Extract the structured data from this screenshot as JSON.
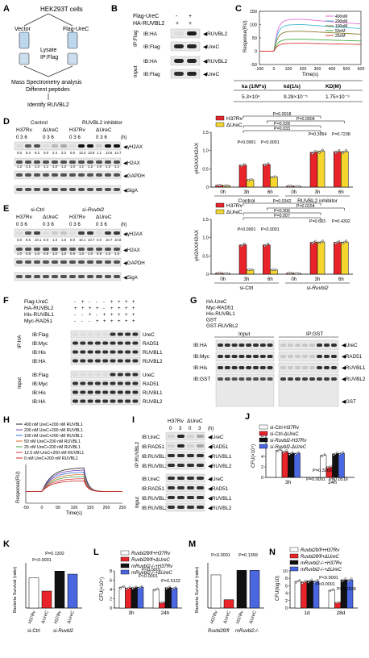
{
  "panels": {
    "A": {
      "letter": "A",
      "cell_line": "HEK293T cells",
      "vector": "Vector",
      "flag_urec": "Flag-UreC",
      "lysate": "Lysate",
      "ip": "IP:Flag",
      "ms": "Mass Spectrometry analysis",
      "diff": "Different peptides",
      "identify": "Identify RUVBL2"
    },
    "B": {
      "letter": "B",
      "rows": [
        "Flag-UreC",
        "HA-RUVBL2"
      ],
      "signs": [
        [
          "-",
          "+"
        ],
        [
          "+",
          "+"
        ]
      ],
      "ip_label": "IP:Flag",
      "input_label": "Input",
      "blots": [
        "IB:HA",
        "IB:Flag",
        "IB:HA",
        "IB:Flag"
      ],
      "bands": [
        "RUVBL2",
        "UreC",
        "RUVBL2",
        "UreC"
      ]
    },
    "C": {
      "letter": "C",
      "legend": [
        "400nM",
        "200nM",
        "100nM",
        "50nM",
        "25nM"
      ],
      "ylabel": "Response(RU)",
      "xlabel": "Time(s)",
      "yticks": [
        "-50",
        "0",
        "50",
        "100",
        "150"
      ],
      "xticks": [
        "-100",
        "0",
        "100",
        "200",
        "300",
        "400",
        "500",
        "600"
      ],
      "table_headers": [
        "ka (1/M*s)",
        "kd(1/s)",
        "KD(M)"
      ],
      "table_values": [
        "5.3×10⁴",
        "9.28×10⁻⁵",
        "1.75×10⁻⁹"
      ]
    },
    "D": {
      "letter": "D",
      "group1": "Control",
      "group2": "RUVBL2 inhibitor",
      "strains": [
        "H37Rv",
        "ΔUreC",
        "H37Rv",
        "ΔUreC"
      ],
      "times": "0 3 6",
      "h": "(h)",
      "blots": [
        "γH2AX",
        "H2AX",
        "GAPDH",
        "SigA"
      ],
      "quant1": [
        "0.0",
        "8.4",
        "9.2",
        "0.0",
        "2.4",
        "3.3",
        "0.0",
        "13.3",
        "13.8",
        "1.1",
        "13.6",
        "14.7"
      ],
      "quant2": [
        "1.2",
        "1.1",
        "1.2",
        "1.1",
        "1.0",
        "1.2",
        "1.0",
        "1.1",
        "1.2",
        "1.0",
        "1.2",
        "1.1"
      ],
      "legend": [
        "H37Rv",
        "ΔUreC"
      ],
      "ylabel": "γH2AX/H2AX",
      "yticks": [
        "0",
        "0.5",
        "1.0",
        "1.5"
      ],
      "xticks": [
        "0h",
        "3h",
        "6h",
        "0h",
        "3h",
        "6h"
      ],
      "groups": [
        "Control",
        "RUVBL2 inhibitor"
      ],
      "pvals": [
        "P=0.0018",
        "P=0.0004",
        "P=0.028",
        "P=0.033",
        "P<0.0001",
        "P<0.0001",
        "P=0.3954",
        "P=0.7238"
      ]
    },
    "E": {
      "letter": "E",
      "group1": "si-Ctrl",
      "group2": "si-Ruvbl2",
      "strains": [
        "H37Rv",
        "ΔUreC",
        "H37Rv",
        "ΔUreC"
      ],
      "times": "0 3 6",
      "h": "(h)",
      "blots": [
        "γH2AX",
        "H2AX",
        "GAPDH",
        "SigA"
      ],
      "quant1": [
        "0.0",
        "8.6",
        "10.1",
        "0.0",
        "1.0",
        "1.6",
        "0.0",
        "10.1",
        "10.7",
        "0.0",
        "10.7",
        "10.8"
      ],
      "quant2": [
        "1.0",
        "0.9",
        "1.0",
        "0.9",
        "1.0",
        "1.0",
        "0.9",
        "1.0",
        "1.0",
        "0.9",
        "1.0",
        "1.0"
      ],
      "legend": [
        "H37Rv",
        "ΔUreC"
      ],
      "ylabel": "γH2AX/H2AX",
      "yticks": [
        "0",
        "0.5",
        "1.0",
        "1.5"
      ],
      "xticks": [
        "0h",
        "3h",
        "6h",
        "0h",
        "3h",
        "6h"
      ],
      "groups": [
        "si-Ctrl",
        "si-Ruvbl2"
      ],
      "pvals": [
        "P=0.0342",
        "P=0.0154",
        "P=0.006",
        "P=0.007",
        "P<0.0001",
        "P<0.0001",
        "P=0.683",
        "P=0.4302"
      ]
    },
    "F": {
      "letter": "F",
      "rows": [
        "Flag-UreC",
        "HA-RUVBL2",
        "His-RUVBL1",
        "Myc-RAD51"
      ],
      "ip_label": "IP:HA",
      "input_label": "Input",
      "blots": [
        "IB:Flag",
        "IB:Myc",
        "IB:His",
        "IB:HA",
        "IB:Flag",
        "IB:Myc",
        "IB:His",
        "IB:HA"
      ],
      "bands": [
        "UreC",
        "RAD51",
        "RUVBL1",
        "RUVBL2",
        "UreC",
        "RAD51",
        "RUVBL1",
        "RUVBL2"
      ]
    },
    "G": {
      "letter": "G",
      "rows": [
        "HA-UreC",
        "Myc-RAD51",
        "His-RUVBL1",
        "GST",
        "GST-RUVBL2"
      ],
      "input_label": "Input",
      "ip_label": "IP:GST",
      "blots": [
        "IB:HA",
        "IB:Myc",
        "IB:His",
        "IB:GST"
      ],
      "bands": [
        "UreC",
        "RAD51",
        "RUVBL1",
        "RUVBL2",
        "GST"
      ]
    },
    "H": {
      "letter": "H",
      "legend": [
        "400 nM UreC+200 nM RUVBL1",
        "200 nM UreC+200 nM RUVBL1",
        "100 nM UreC+200 nM RUVBL1",
        "50 nM UreC+200 nM RUVBL1",
        "25 nM UreC+200 nM RUVBL1",
        "12.5 nM UreC+200 nM RUVBL1",
        "0 nM UreC+200 nM RUVBL1"
      ],
      "ylabel": "Response(RU)",
      "xlabel": "Time(s)",
      "xticks": [
        "-50",
        "0",
        "50",
        "100",
        "150",
        "200",
        "250"
      ]
    },
    "I": {
      "letter": "I",
      "strains": [
        "H37Rv",
        "ΔUreC"
      ],
      "times": [
        "0",
        "3",
        "0",
        "3"
      ],
      "h": "(h)",
      "ip_label": "IP:RUVBL2",
      "input_label": "Input",
      "blots": [
        "IB:UreC",
        "IB:RAD51",
        "IB:RUVBL1",
        "IB:RUVBL2",
        "IB:UreC",
        "IB:RAD51",
        "IB:RUVBL1",
        "IB:RUVBL2"
      ],
      "bands": [
        "UreC",
        "RAD51",
        "RUVBL1",
        "RUVBL2",
        "UreC",
        "RAD51",
        "RUVBL1",
        "RUVBL2"
      ]
    },
    "J": {
      "letter": "J",
      "legend": [
        "si-Ctrl-H37Rv",
        "si-Ctrl-ΔUreC",
        "si-Ruvbl2-H37Rv",
        "si-Ruvbl2-ΔUreC"
      ],
      "ylabel": "CFU(×10⁴)",
      "xticks": [
        "3h",
        "24h"
      ],
      "pvals": [
        "P=0.3268",
        "P=0.0001",
        "P=0.0516"
      ]
    },
    "K": {
      "letter": "K",
      "ylabel": "Bacteria Survival (ratio)",
      "pvals": [
        "P=0.1302",
        "P<0.0001"
      ],
      "xticks": [
        "H37Rv",
        "ΔUreC",
        "H37Rv",
        "ΔUreC"
      ],
      "groups": [
        "si-Ctrl",
        "si-Ruvbl2"
      ]
    },
    "L": {
      "letter": "L",
      "legend": [
        "Ruvbl2fl/fl+H37Rv",
        "Ruvbl2fl/fl+ΔUreC",
        "mRuvbl2-/-+H37Rv",
        "mRuvbl2-/-+ΔUreC"
      ],
      "ylabel": "CFU(×10⁴)",
      "xticks": [
        "3h",
        "24h"
      ],
      "pvals": [
        "P<0.0001",
        "P<0.0001",
        "P=0.5122"
      ]
    },
    "M": {
      "letter": "M",
      "ylabel": "Bacteria Survival (ratio)",
      "pvals": [
        "P<0.0001",
        "P=0.1359"
      ],
      "xticks": [
        "H37Rv",
        "ΔUreC",
        "H37Rv",
        "ΔUreC"
      ],
      "groups": [
        "Ruvbl2fl/fl",
        "mRuvbl2-/-"
      ]
    },
    "N": {
      "letter": "N",
      "legend": [
        "Ruvbl2fl/fl+H37Rv",
        "Ruvbl2fl/fl+ΔUreC",
        "mRuvbl2-/-+H37Rv",
        "mRuvbl2-/-+ΔUreC"
      ],
      "ylabel": "CFU(log10)",
      "yticks": [
        "0",
        "2",
        "4",
        "6",
        "8",
        "10"
      ],
      "xticks": [
        "1d",
        "28d"
      ],
      "pvals": [
        "P<0.0001",
        "P<0.0001",
        "P=0.2838"
      ]
    }
  },
  "chart_data": [
    {
      "id": "D",
      "type": "bar",
      "categories": [
        "0h",
        "3h",
        "6h",
        "0h",
        "3h",
        "6h"
      ],
      "series": [
        {
          "name": "H37Rv",
          "values": [
            0.05,
            0.6,
            0.62,
            0.03,
            0.95,
            0.97
          ]
        },
        {
          "name": "ΔUreC",
          "values": [
            0.04,
            0.2,
            0.28,
            0.02,
            0.98,
            0.97
          ]
        }
      ],
      "ylim": [
        0,
        1.5
      ],
      "ylabel": "γH2AX/H2AX"
    },
    {
      "id": "E",
      "type": "bar",
      "categories": [
        "0h",
        "3h",
        "6h",
        "0h",
        "3h",
        "6h"
      ],
      "series": [
        {
          "name": "H37Rv",
          "values": [
            0.03,
            0.8,
            0.8,
            0.03,
            0.87,
            0.87
          ]
        },
        {
          "name": "ΔUreC",
          "values": [
            0.02,
            0.12,
            0.12,
            0.02,
            0.88,
            0.88
          ]
        }
      ],
      "ylim": [
        0,
        1.5
      ],
      "ylabel": "γH2AX/H2AX"
    },
    {
      "id": "J",
      "type": "bar",
      "categories": [
        "3h",
        "24h"
      ],
      "series": [
        {
          "name": "si-Ctrl-H37Rv",
          "values": [
            5.2,
            4.2
          ]
        },
        {
          "name": "si-Ctrl-ΔUreC",
          "values": [
            4.9,
            2.0
          ]
        },
        {
          "name": "si-Ruvbl2-H37Rv",
          "values": [
            4.6,
            4.5
          ]
        },
        {
          "name": "si-Ruvbl2-ΔUreC",
          "values": [
            4.6,
            4.6
          ]
        }
      ],
      "ylim": [
        0,
        8
      ]
    },
    {
      "id": "K",
      "type": "bar",
      "categories": [
        "H37Rv",
        "ΔUreC",
        "H37Rv",
        "ΔUreC"
      ],
      "values": [
        0.8,
        0.45,
        0.98,
        0.9
      ],
      "ylim": [
        0,
        1.2
      ]
    },
    {
      "id": "L",
      "type": "bar",
      "categories": [
        "3h",
        "24h"
      ],
      "series": [
        {
          "name": "Ruvbl2fl/fl+H37Rv",
          "values": [
            4.5,
            4.0
          ]
        },
        {
          "name": "Ruvbl2fl/fl+ΔUreC",
          "values": [
            4.3,
            1.2
          ]
        },
        {
          "name": "mRuvbl2-/-+H37Rv",
          "values": [
            4.4,
            4.4
          ]
        },
        {
          "name": "mRuvbl2-/-+ΔUreC",
          "values": [
            4.5,
            4.3
          ]
        }
      ],
      "ylim": [
        0,
        8
      ]
    },
    {
      "id": "M",
      "type": "bar",
      "categories": [
        "H37Rv",
        "ΔUreC",
        "H37Rv",
        "ΔUreC"
      ],
      "values": [
        0.88,
        0.22,
        1.0,
        1.0
      ],
      "ylim": [
        0,
        1.2
      ]
    },
    {
      "id": "N",
      "type": "bar",
      "categories": [
        "1d",
        "28d"
      ],
      "series": [
        {
          "name": "Ruvbl2fl/fl+H37Rv",
          "values": [
            7.2,
            4.8
          ]
        },
        {
          "name": "Ruvbl2fl/fl+ΔUreC",
          "values": [
            7.0,
            1.5
          ]
        },
        {
          "name": "mRuvbl2-/-+H37Rv",
          "values": [
            7.3,
            7.6
          ]
        },
        {
          "name": "mRuvbl2-/-+ΔUreC",
          "values": [
            7.2,
            7.6
          ]
        }
      ],
      "ylim": [
        0,
        10
      ]
    }
  ],
  "colors": {
    "h37rv": "#e8242a",
    "durec": "#f4d62f",
    "white": "#ffffff",
    "black": "#111111",
    "blue": "#4a67e0",
    "red": "#e8242a"
  }
}
